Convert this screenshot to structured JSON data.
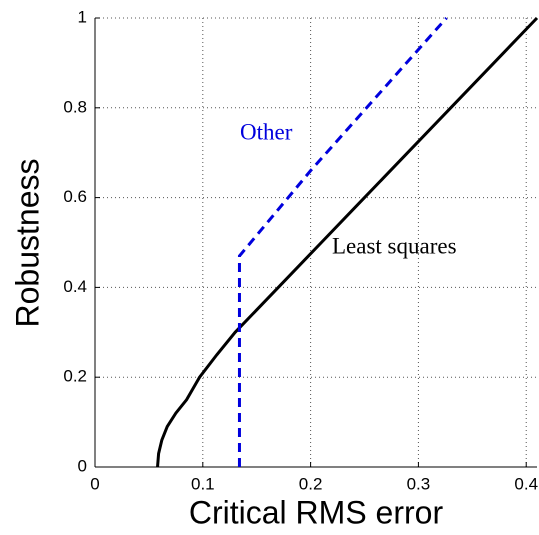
{
  "chart_data": {
    "type": "line",
    "xlabel": "Critical RMS error",
    "ylabel": "Robustness",
    "xlim": [
      0,
      0.41
    ],
    "ylim": [
      0,
      1
    ],
    "xticks": [
      0,
      0.1,
      0.2,
      0.3,
      0.4
    ],
    "yticks": [
      0,
      0.2,
      0.4,
      0.6,
      0.8,
      1
    ],
    "grid": true,
    "series": [
      {
        "name": "Least squares",
        "color": "#000000",
        "dashed": false,
        "x": [
          0.058,
          0.059,
          0.062,
          0.067,
          0.075,
          0.085,
          0.097,
          0.113,
          0.13,
          0.17,
          0.21,
          0.25,
          0.29,
          0.33,
          0.37,
          0.41
        ],
        "values": [
          0,
          0.03,
          0.06,
          0.09,
          0.12,
          0.15,
          0.2,
          0.25,
          0.3,
          0.4,
          0.5,
          0.6,
          0.7,
          0.8,
          0.9,
          1
        ]
      },
      {
        "name": "Other",
        "color": "#0000dd",
        "dashed": true,
        "x": [
          0.134,
          0.134,
          0.2,
          0.326
        ],
        "values": [
          0,
          0.47,
          0.66,
          1
        ]
      }
    ]
  }
}
